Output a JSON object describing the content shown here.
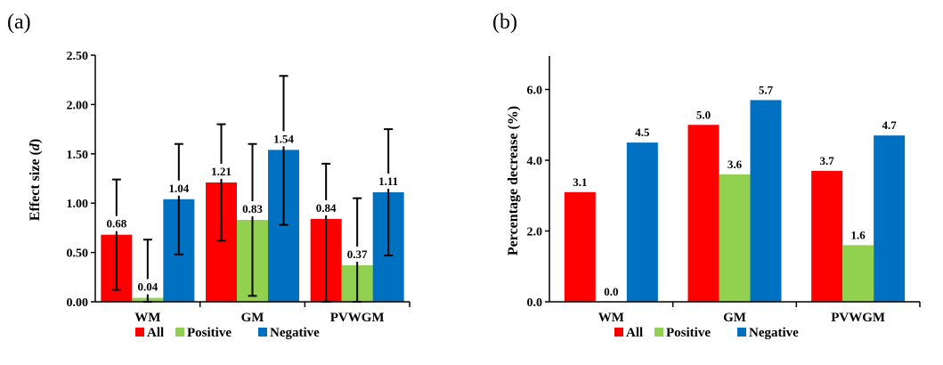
{
  "legend": [
    {
      "name": "All",
      "color": "#ff0000"
    },
    {
      "name": "Positive",
      "color": "#92d050"
    },
    {
      "name": "Negative",
      "color": "#0070c0"
    }
  ],
  "chart_data": [
    {
      "panel": "(a)",
      "type": "bar",
      "ylabel_prefix": "Effect size (",
      "ylabel_var": "d",
      "ylabel_suffix": ")",
      "categories": [
        "WM",
        "GM",
        "PVWGM"
      ],
      "ylim": [
        0,
        2.5
      ],
      "yticks": [
        "0.00",
        "0.50",
        "1.00",
        "1.50",
        "2.00",
        "2.50"
      ],
      "grid": false,
      "legend_position": "bottom",
      "series": [
        {
          "name": "All",
          "values": [
            0.68,
            1.21,
            0.84
          ],
          "labels": [
            "0.68",
            "1.21",
            "0.84"
          ],
          "err_low": [
            0.12,
            0.62,
            0.0
          ],
          "err_high": [
            1.24,
            1.8,
            1.4
          ]
        },
        {
          "name": "Positive",
          "values": [
            0.04,
            0.83,
            0.37
          ],
          "labels": [
            "0.04",
            "0.83",
            "0.37"
          ],
          "err_low": [
            0.0,
            0.06,
            0.0
          ],
          "err_high": [
            0.63,
            1.6,
            1.05
          ]
        },
        {
          "name": "Negative",
          "values": [
            1.04,
            1.54,
            1.11
          ],
          "labels": [
            "1.04",
            "1.54",
            "1.11"
          ],
          "err_low": [
            0.48,
            0.78,
            0.47
          ],
          "err_high": [
            1.6,
            2.29,
            1.75
          ]
        }
      ]
    },
    {
      "panel": "(b)",
      "type": "bar",
      "ylabel": "Percentage decrease (%)",
      "categories": [
        "WM",
        "GM",
        "PVWGM"
      ],
      "ylim": [
        0,
        8.0
      ],
      "yticks": [
        "0.0",
        "2.0",
        "4.0",
        "6.0"
      ],
      "grid": false,
      "legend_position": "bottom",
      "series": [
        {
          "name": "All",
          "values": [
            3.1,
            5.0,
            3.7
          ],
          "labels": [
            "3.1",
            "5.0",
            "3.7"
          ]
        },
        {
          "name": "Positive",
          "values": [
            0.0,
            3.6,
            1.6
          ],
          "labels": [
            "0.0",
            "3.6",
            "1.6"
          ]
        },
        {
          "name": "Negative",
          "values": [
            4.5,
            5.7,
            4.7
          ],
          "labels": [
            "4.5",
            "5.7",
            "4.7"
          ]
        }
      ]
    }
  ]
}
